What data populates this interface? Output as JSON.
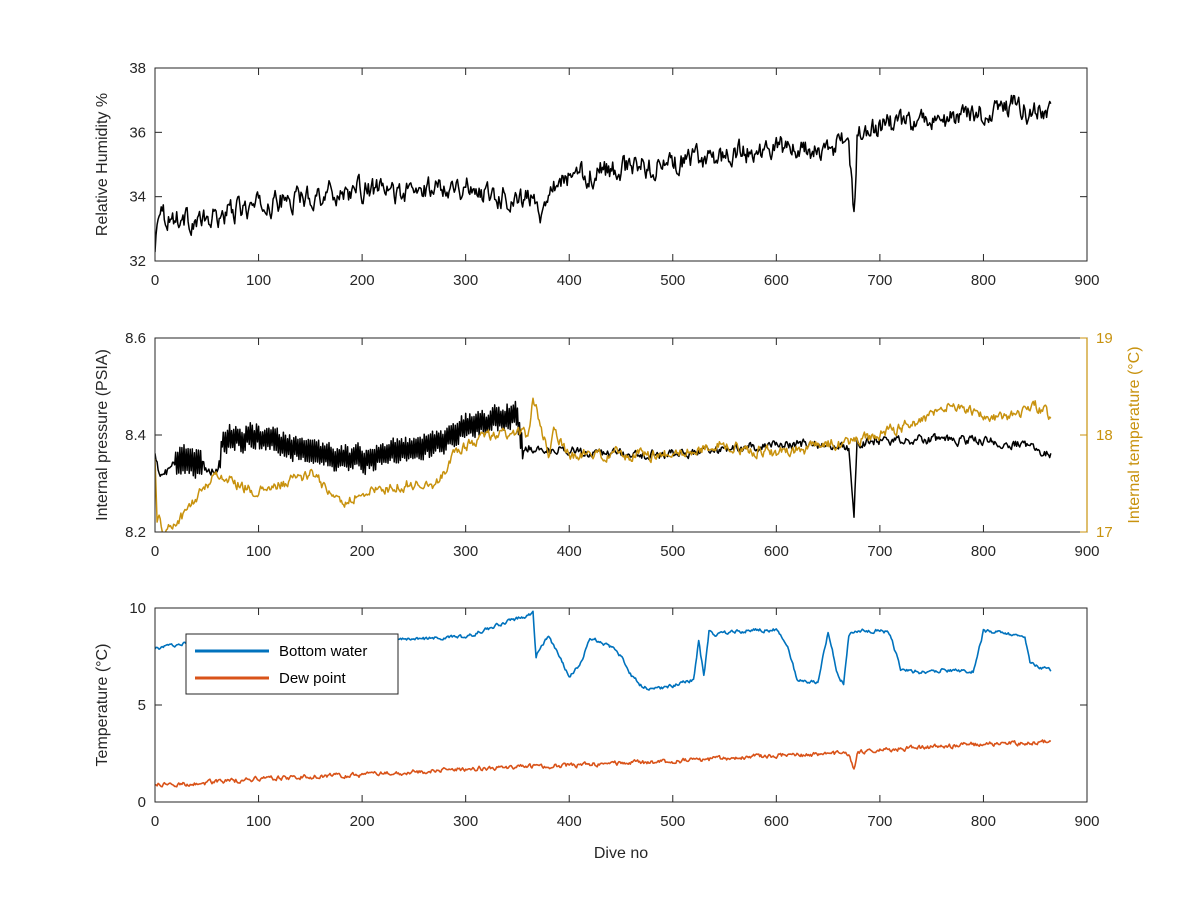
{
  "chart_data": [
    {
      "type": "line",
      "xlim": [
        0,
        900
      ],
      "ylim": [
        32,
        38
      ],
      "xticks": [
        0,
        100,
        200,
        300,
        400,
        500,
        600,
        700,
        800,
        900
      ],
      "yticks": [
        32,
        34,
        36,
        38
      ],
      "xtick_labels": [
        "0",
        "100",
        "200",
        "300",
        "400",
        "500",
        "600",
        "700",
        "800",
        "900"
      ],
      "ytick_labels": [
        "32",
        "34",
        "36",
        "38"
      ],
      "xlabel": "",
      "ylabel": "Relative Humidity %",
      "grid": false,
      "series": [
        {
          "color": "#000000",
          "noise": 0.3,
          "x": [
            0,
            2,
            5,
            10,
            30,
            50,
            70,
            100,
            130,
            160,
            200,
            250,
            280,
            300,
            340,
            365,
            372,
            380,
            400,
            450,
            500,
            550,
            600,
            650,
            670,
            675,
            678,
            690,
            700,
            750,
            800,
            830,
            850,
            865
          ],
          "y": [
            32.2,
            33.3,
            33.9,
            33.4,
            33.3,
            33.2,
            33.5,
            33.7,
            33.9,
            34.1,
            34.2,
            34.1,
            34.4,
            34.3,
            34.0,
            33.9,
            33.5,
            34.4,
            34.6,
            34.9,
            35.0,
            35.3,
            35.5,
            35.4,
            35.8,
            33.3,
            35.8,
            36.0,
            36.2,
            36.3,
            36.6,
            36.8,
            36.6,
            36.5
          ]
        }
      ]
    },
    {
      "type": "line",
      "xlim": [
        0,
        900
      ],
      "ylim": [
        8.2,
        8.6
      ],
      "y2lim": [
        17,
        19
      ],
      "xticks": [
        0,
        100,
        200,
        300,
        400,
        500,
        600,
        700,
        800,
        900
      ],
      "yticks": [
        8.2,
        8.4,
        8.6
      ],
      "y2ticks": [
        17,
        18,
        19
      ],
      "xtick_labels": [
        "0",
        "100",
        "200",
        "300",
        "400",
        "500",
        "600",
        "700",
        "800",
        "900"
      ],
      "ytick_labels": [
        "8.2",
        "8.4",
        "8.6"
      ],
      "y2tick_labels": [
        "17",
        "18",
        "19"
      ],
      "xlabel": "",
      "ylabel": "Internal pressure (PSIA)",
      "y2label": "Internal temperature (°C)",
      "y2color": "#C8920E",
      "grid": false,
      "series": [
        {
          "axis": "left",
          "color": "#000000",
          "noise": 0.008,
          "x": [
            0,
            3,
            5,
            20,
            45,
            48,
            62,
            65,
            100,
            130,
            160,
            200,
            240,
            280,
            300,
            330,
            350,
            355,
            370,
            400,
            450,
            500,
            550,
            600,
            650,
            670,
            675,
            678,
            700,
            750,
            800,
            840,
            865
          ],
          "y": [
            8.37,
            8.33,
            8.31,
            8.34,
            8.35,
            8.33,
            8.33,
            8.39,
            8.4,
            8.38,
            8.36,
            8.35,
            8.37,
            8.39,
            8.42,
            8.43,
            8.44,
            8.38,
            8.37,
            8.37,
            8.36,
            8.36,
            8.37,
            8.38,
            8.38,
            8.37,
            8.24,
            8.38,
            8.39,
            8.39,
            8.39,
            8.38,
            8.36
          ],
          "oscillation": [
            [
              20,
              45,
              0.05
            ],
            [
              62,
              355,
              0.04
            ]
          ]
        },
        {
          "axis": "right",
          "color": "#C8920E",
          "noise": 0.05,
          "x": [
            0,
            2,
            5,
            10,
            20,
            30,
            50,
            60,
            80,
            100,
            150,
            170,
            180,
            200,
            250,
            270,
            290,
            300,
            320,
            340,
            360,
            365,
            370,
            380,
            385,
            400,
            450,
            500,
            550,
            600,
            650,
            700,
            750,
            760,
            800,
            830,
            850,
            865
          ],
          "y": [
            17.8,
            17.1,
            17.1,
            17.0,
            17.1,
            17.2,
            17.5,
            17.6,
            17.5,
            17.4,
            17.6,
            17.4,
            17.3,
            17.4,
            17.5,
            17.5,
            17.8,
            17.9,
            18.0,
            18.0,
            18.0,
            18.4,
            18.2,
            17.8,
            18.0,
            17.8,
            17.8,
            17.8,
            17.9,
            17.8,
            17.9,
            18.0,
            18.2,
            18.3,
            18.2,
            18.2,
            18.3,
            18.2
          ]
        }
      ]
    },
    {
      "type": "line",
      "xlim": [
        0,
        900
      ],
      "ylim": [
        0,
        10
      ],
      "xticks": [
        0,
        100,
        200,
        300,
        400,
        500,
        600,
        700,
        800,
        900
      ],
      "yticks": [
        0,
        5,
        10
      ],
      "xtick_labels": [
        "0",
        "100",
        "200",
        "300",
        "400",
        "500",
        "600",
        "700",
        "800",
        "900"
      ],
      "ytick_labels": [
        "0",
        "5",
        "10"
      ],
      "xlabel": "Dive no",
      "ylabel": "Temperature (°C)",
      "grid": false,
      "legend": "top-left",
      "series": [
        {
          "name": "Bottom water",
          "color": "#0072BD",
          "noise": 0.08,
          "x": [
            0,
            20,
            50,
            100,
            200,
            250,
            300,
            340,
            355,
            365,
            368,
            372,
            380,
            390,
            400,
            410,
            420,
            440,
            450,
            460,
            470,
            480,
            500,
            520,
            525,
            530,
            535,
            540,
            560,
            600,
            610,
            620,
            640,
            650,
            660,
            665,
            670,
            680,
            690,
            700,
            710,
            720,
            740,
            760,
            790,
            800,
            820,
            840,
            845,
            850,
            860,
            865
          ],
          "y": [
            7.9,
            8.1,
            8.4,
            8.4,
            8.4,
            8.4,
            8.5,
            9.3,
            9.5,
            9.8,
            7.5,
            8.0,
            8.5,
            7.5,
            6.5,
            7.0,
            8.5,
            8.0,
            7.5,
            6.5,
            6.0,
            5.8,
            6.0,
            6.3,
            8.3,
            6.5,
            8.8,
            8.6,
            8.8,
            8.9,
            8.2,
            6.3,
            6.2,
            8.7,
            6.4,
            6.1,
            8.6,
            8.9,
            8.8,
            8.9,
            8.7,
            6.8,
            6.7,
            6.8,
            6.7,
            8.8,
            8.7,
            8.6,
            7.2,
            7.0,
            6.9,
            6.8
          ]
        },
        {
          "name": "Dew point",
          "color": "#D95319",
          "noise": 0.1,
          "x": [
            0,
            20,
            50,
            100,
            200,
            300,
            400,
            450,
            500,
            600,
            670,
            675,
            678,
            700,
            800,
            865
          ],
          "y": [
            0.9,
            0.9,
            1.0,
            1.2,
            1.4,
            1.7,
            1.9,
            2.0,
            2.1,
            2.4,
            2.5,
            1.6,
            2.5,
            2.7,
            3.0,
            3.1
          ]
        }
      ]
    }
  ]
}
